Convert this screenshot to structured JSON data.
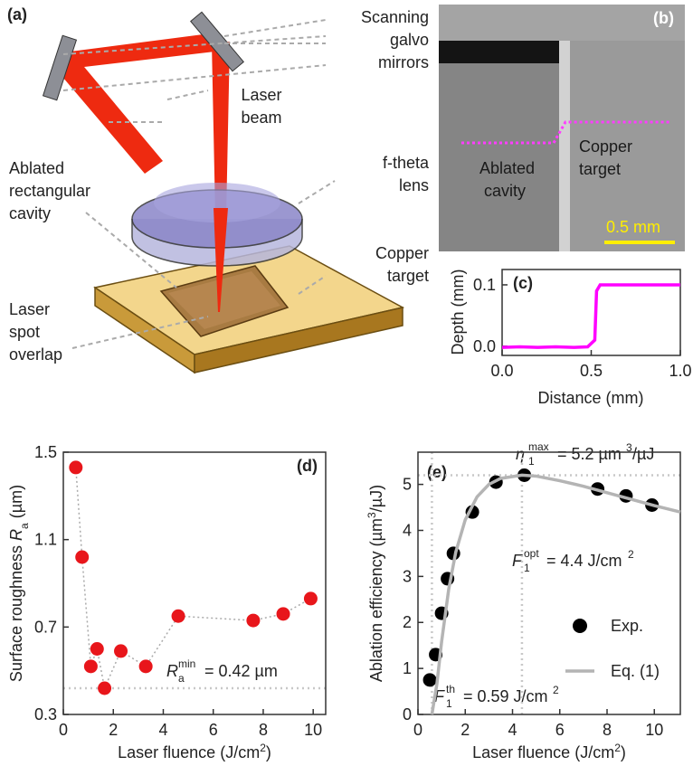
{
  "schematic": {
    "panel_label": "(a)",
    "mirrors_label": [
      "Scanning",
      "galvo",
      "mirrors"
    ],
    "beam_label": [
      "Laser",
      "beam"
    ],
    "cavity_label": [
      "Ablated",
      "rectangular",
      "cavity"
    ],
    "lens_label": [
      "f-theta",
      "lens"
    ],
    "target_label": [
      "Copper",
      "target"
    ],
    "spot_label": [
      "Laser",
      "spot",
      "overlap"
    ]
  },
  "micrograph": {
    "panel_label": "(b)",
    "target_label": [
      "Copper",
      "target"
    ],
    "cavity_label": [
      "Ablated",
      "cavity"
    ],
    "scale_bar": "0.5 mm"
  },
  "chart_data": [
    {
      "type": "line",
      "panel_label": "(c)",
      "x_label": "Distance (mm)",
      "y_label": "Depth (mm)",
      "series": [
        {
          "color": "#ff00ff",
          "x": [
            0,
            0.1,
            0.2,
            0.3,
            0.4,
            0.48,
            0.52,
            0.53,
            0.55,
            0.7,
            0.85,
            1.0
          ],
          "values": [
            -0.002,
            -0.001,
            -0.002,
            -0.001,
            -0.002,
            -0.001,
            0.01,
            0.09,
            0.1,
            0.1,
            0.1,
            0.1
          ]
        }
      ],
      "xlim": [
        0,
        1
      ],
      "ylim": [
        -0.015,
        0.125
      ],
      "xticks": [
        {
          "value": 0,
          "label": "0.0"
        },
        0.5,
        {
          "value": 1,
          "label": "1.0"
        }
      ],
      "yticks": [
        {
          "value": 0,
          "label": "0.0"
        },
        0.1
      ]
    },
    {
      "type": "scatter",
      "panel_label": "(d)",
      "connect": true,
      "x_label": [
        "Laser fluence (J/cm",
        "2",
        ")"
      ],
      "y_label": [
        "Surface roughness ",
        "R",
        "a",
        " (µm)"
      ],
      "series": [
        {
          "color": "#e8161b",
          "x": [
            0.5,
            0.75,
            1.1,
            1.35,
            1.65,
            2.3,
            3.3,
            4.6,
            7.6,
            8.8,
            9.9
          ],
          "values": [
            1.43,
            1.02,
            0.52,
            0.6,
            0.42,
            0.59,
            0.52,
            0.75,
            0.73,
            0.76,
            0.83
          ]
        }
      ],
      "xlim": [
        0,
        10.5
      ],
      "ylim": [
        0.3,
        1.5
      ],
      "xticks": [
        0,
        2,
        4,
        6,
        8,
        10
      ],
      "yticks": [
        0.3,
        0.7,
        1.1,
        1.5
      ],
      "hlines": [
        0.42
      ],
      "annotation": [
        "R",
        "a",
        "min",
        "= 0.42 µm"
      ]
    },
    {
      "type": "scatter",
      "panel_label": "(e)",
      "legend": "lower right",
      "x_label": [
        "Laser fluence (J/cm",
        "2",
        ")"
      ],
      "y_label": [
        "Ablation efficiency (µm",
        "3",
        "/µJ)"
      ],
      "series": [
        {
          "name": "Exp.",
          "type": "scatter",
          "color": "#000000",
          "x": [
            0.5,
            0.75,
            1.0,
            1.25,
            1.5,
            2.3,
            3.3,
            4.5,
            7.6,
            8.8,
            9.9
          ],
          "values": [
            0.75,
            1.3,
            2.2,
            2.95,
            3.5,
            4.4,
            5.05,
            5.2,
            4.9,
            4.75,
            4.55
          ]
        },
        {
          "name": "Eq. (1)",
          "type": "line",
          "color": "#b4b4b4",
          "x": [
            0.59,
            0.8,
            1,
            1.3,
            1.6,
            2,
            2.5,
            3,
            3.5,
            4.4,
            5,
            6,
            7,
            8,
            9,
            10,
            11.1
          ],
          "values": [
            0,
            0.66,
            1.58,
            2.72,
            3.53,
            4.23,
            4.73,
            5.0,
            5.13,
            5.2,
            5.18,
            5.08,
            4.96,
            4.82,
            4.68,
            4.54,
            4.4
          ]
        }
      ],
      "xlim": [
        0,
        11.1
      ],
      "ylim": [
        0,
        5.7
      ],
      "xticks": [
        0,
        2,
        4,
        6,
        8,
        10
      ],
      "yticks": [
        0,
        1,
        2,
        3,
        4,
        5
      ],
      "vlines": [
        0.59,
        4.4
      ],
      "hlines": [
        5.2
      ],
      "annotations": [
        [
          "η",
          "max",
          "1",
          "= 5.2 µm",
          "3",
          "/µJ"
        ],
        [
          "F",
          "opt",
          "1",
          "= 4.4 J/cm",
          "2"
        ],
        [
          "F",
          "th",
          "1",
          "= 0.59 J/cm",
          "2"
        ]
      ]
    }
  ]
}
